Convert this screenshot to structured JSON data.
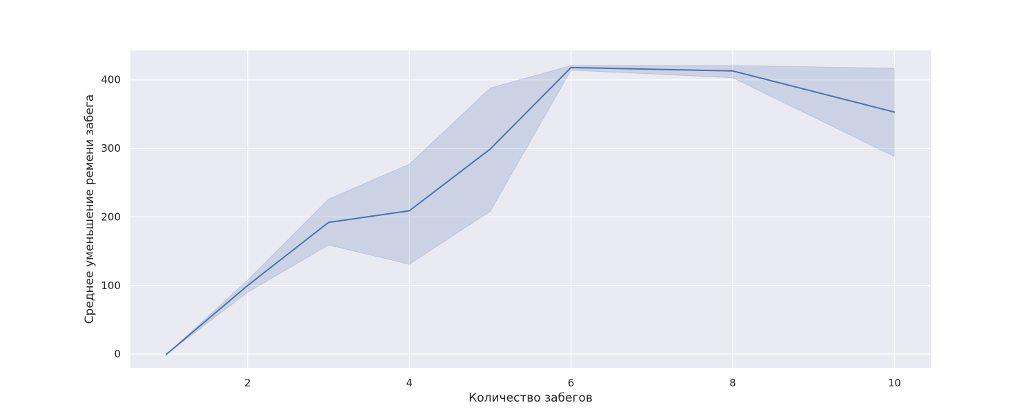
{
  "chart_data": {
    "type": "line",
    "title": "",
    "xlabel": "Количество забегов",
    "ylabel": "Среднее уменьшение ремени забега",
    "xlim": [
      0.55,
      10.45
    ],
    "ylim": [
      -20,
      443
    ],
    "x_ticks": [
      2,
      4,
      6,
      8,
      10
    ],
    "y_ticks": [
      0,
      100,
      200,
      300,
      400
    ],
    "grid": true,
    "legend": "none",
    "series": [
      {
        "x": [
          1,
          2,
          3,
          4,
          5,
          6,
          8,
          10
        ],
        "y": [
          0,
          100,
          192,
          209,
          299,
          418,
          413,
          353
        ],
        "ci_lower": [
          0,
          90,
          159,
          131,
          208,
          414,
          403,
          288
        ],
        "ci_upper": [
          0,
          108,
          226,
          277,
          388,
          421,
          421,
          417
        ]
      }
    ],
    "colors": {
      "line": "#4c72b0",
      "band": "#4c72b0",
      "plot_background": "#eaeaf2",
      "grid": "#ffffff",
      "text": "#262626"
    }
  }
}
